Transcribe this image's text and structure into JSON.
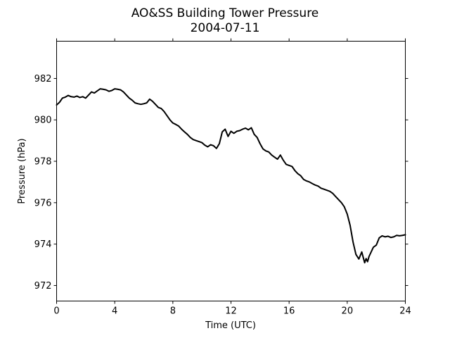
{
  "chart_data": {
    "type": "line",
    "title": "AO&SS Building Tower Pressure",
    "subtitle": "2004-07-11",
    "xlabel": "Time (UTC)",
    "ylabel": "Pressure (hPa)",
    "xlim": [
      0,
      24
    ],
    "ylim": [
      971.25,
      983.8
    ],
    "xticks": [
      0,
      4,
      8,
      12,
      16,
      20,
      24
    ],
    "yticks": [
      972,
      974,
      976,
      978,
      980,
      982
    ],
    "grid": false,
    "line_color": "#000000",
    "series": [
      {
        "x": [
          0,
          0.2,
          0.4,
          0.6,
          0.8,
          1.0,
          1.2,
          1.4,
          1.6,
          1.8,
          2.0,
          2.2,
          2.4,
          2.6,
          2.8,
          3.0,
          3.2,
          3.4,
          3.6,
          3.8,
          4.0,
          4.2,
          4.4,
          4.6,
          4.8,
          5.0,
          5.2,
          5.4,
          5.6,
          5.8,
          6.0,
          6.2,
          6.4,
          6.6,
          6.8,
          7.0,
          7.2,
          7.4,
          7.6,
          7.8,
          8.0,
          8.2,
          8.4,
          8.6,
          8.8,
          9.0,
          9.2,
          9.4,
          9.6,
          9.8,
          10.0,
          10.2,
          10.4,
          10.6,
          10.8,
          11.0,
          11.2,
          11.4,
          11.6,
          11.8,
          12.0,
          12.2,
          12.4,
          12.6,
          12.8,
          13.0,
          13.2,
          13.4,
          13.6,
          13.8,
          14.0,
          14.2,
          14.4,
          14.6,
          14.8,
          15.0,
          15.2,
          15.4,
          15.6,
          15.8,
          16.0,
          16.2,
          16.4,
          16.6,
          16.8,
          17.0,
          17.2,
          17.4,
          17.6,
          17.8,
          18.0,
          18.2,
          18.4,
          18.6,
          18.8,
          19.0,
          19.2,
          19.4,
          19.6,
          19.8,
          20.0,
          20.2,
          20.4,
          20.6,
          20.8,
          21.0,
          21.2,
          21.3,
          21.4,
          21.5,
          21.6,
          21.7,
          21.8,
          22.0,
          22.2,
          22.4,
          22.6,
          22.8,
          23.0,
          23.2,
          23.4,
          23.6,
          23.8,
          24.0
        ],
        "y": [
          980.72,
          980.85,
          981.05,
          981.1,
          981.18,
          981.12,
          981.1,
          981.15,
          981.08,
          981.12,
          981.05,
          981.2,
          981.35,
          981.3,
          981.4,
          981.5,
          981.48,
          981.45,
          981.38,
          981.42,
          981.5,
          981.48,
          981.45,
          981.35,
          981.2,
          981.05,
          980.95,
          980.82,
          980.78,
          980.75,
          980.78,
          980.82,
          981.0,
          980.9,
          980.75,
          980.6,
          980.55,
          980.4,
          980.2,
          980.0,
          979.85,
          979.78,
          979.7,
          979.55,
          979.42,
          979.3,
          979.15,
          979.05,
          979.0,
          978.95,
          978.9,
          978.78,
          978.7,
          978.8,
          978.75,
          978.62,
          978.85,
          979.42,
          979.55,
          979.2,
          979.45,
          979.35,
          979.45,
          979.48,
          979.55,
          979.6,
          979.52,
          979.62,
          979.3,
          979.15,
          978.85,
          978.6,
          978.5,
          978.45,
          978.3,
          978.2,
          978.1,
          978.3,
          978.05,
          977.85,
          977.8,
          977.75,
          977.55,
          977.4,
          977.3,
          977.12,
          977.05,
          977.0,
          976.92,
          976.85,
          976.8,
          976.7,
          976.65,
          976.6,
          976.55,
          976.45,
          976.3,
          976.15,
          976.0,
          975.8,
          975.45,
          974.9,
          974.1,
          973.5,
          973.28,
          973.62,
          973.1,
          973.3,
          973.15,
          973.4,
          973.55,
          973.7,
          973.85,
          973.95,
          974.3,
          974.4,
          974.35,
          974.38,
          974.32,
          974.35,
          974.42,
          974.4,
          974.42,
          974.45
        ]
      }
    ]
  }
}
